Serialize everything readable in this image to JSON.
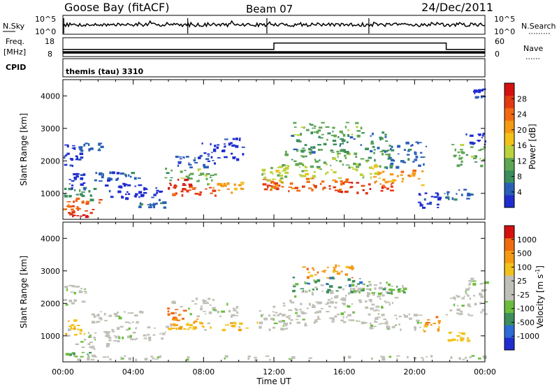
{
  "header": {
    "station": "Goose Bay (fitACF)",
    "beam": "Beam 07",
    "date": "24/Dec/2011"
  },
  "noise_panel": {
    "left_label": "N.Sky",
    "right_label": "N.Search",
    "top_tick": "10^5",
    "bottom_tick": "10^0",
    "spikes_hours": [
      0.05,
      7.1,
      11.6,
      17.4
    ]
  },
  "freq_panel": {
    "left_label": "Freq.",
    "left_unit": "[MHz]",
    "right_label": "Nave",
    "left_ticks": [
      "18",
      "8"
    ],
    "right_ticks": [
      "60",
      "0"
    ],
    "step_profile": [
      [
        0,
        0.62
      ],
      [
        12,
        0.62
      ],
      [
        12,
        0.28
      ],
      [
        21.8,
        0.28
      ],
      [
        21.8,
        0.62
      ],
      [
        24,
        0.62
      ]
    ]
  },
  "cpid_panel": {
    "label": "CPID",
    "mode": "themis (tau) 3310"
  },
  "chart_data": [
    {
      "type": "heatmap",
      "name": "power",
      "ylabel": "Slant Range [km]",
      "xlabel": "Time UT",
      "xlim": [
        0,
        24
      ],
      "ylim": [
        200,
        4500
      ],
      "xticks": [
        "00:00",
        "04:00",
        "08:00",
        "12:00",
        "16:00",
        "20:00",
        "00:00"
      ],
      "yticks": [
        1000,
        2000,
        3000,
        4000
      ],
      "colorbar": {
        "label": "Power [dB]",
        "ticks": [
          "4",
          "8",
          "12",
          "16",
          "20",
          "24",
          "28"
        ],
        "colors": [
          "#1f2dcf",
          "#2a5fb7",
          "#3c8e5d",
          "#5fa654",
          "#bcd23c",
          "#f2c21a",
          "#f49a14",
          "#f16a10",
          "#e33a12",
          "#d4110f"
        ]
      },
      "blobs": [
        {
          "t": 0.9,
          "r": 380,
          "dt": 0.9,
          "dr": 130,
          "c": 9
        },
        {
          "t": 1.0,
          "r": 700,
          "dt": 1.4,
          "dr": 250,
          "c": 7
        },
        {
          "t": 0.8,
          "r": 1000,
          "dt": 1.2,
          "dr": 250,
          "c": 2
        },
        {
          "t": 0.7,
          "r": 1400,
          "dt": 0.7,
          "dr": 300,
          "c": 0
        },
        {
          "t": 0.5,
          "r": 2200,
          "dt": 0.6,
          "dr": 400,
          "c": 0
        },
        {
          "t": 1.5,
          "r": 2450,
          "dt": 0.8,
          "dr": 150,
          "c": 1
        },
        {
          "t": 3.0,
          "r": 1550,
          "dt": 1.6,
          "dr": 200,
          "c": 1
        },
        {
          "t": 4.0,
          "r": 1100,
          "dt": 2.2,
          "dr": 300,
          "c": 0
        },
        {
          "t": 5.0,
          "r": 750,
          "dt": 1.0,
          "dr": 200,
          "c": 1
        },
        {
          "t": 6.6,
          "r": 1300,
          "dt": 0.8,
          "dr": 200,
          "c": 9
        },
        {
          "t": 7.4,
          "r": 1100,
          "dt": 1.6,
          "dr": 170,
          "c": 8
        },
        {
          "t": 7.2,
          "r": 1550,
          "dt": 1.8,
          "dr": 300,
          "c": 3
        },
        {
          "t": 7.5,
          "r": 2000,
          "dt": 1.4,
          "dr": 250,
          "c": 1
        },
        {
          "t": 9.3,
          "r": 1200,
          "dt": 1.0,
          "dr": 200,
          "c": 6
        },
        {
          "t": 9.0,
          "r": 2400,
          "dt": 1.6,
          "dr": 400,
          "c": 0
        },
        {
          "t": 11.8,
          "r": 1250,
          "dt": 0.6,
          "dr": 250,
          "c": 8
        },
        {
          "t": 12.0,
          "r": 1500,
          "dt": 0.9,
          "dr": 400,
          "c": 4
        },
        {
          "t": 14.0,
          "r": 1300,
          "dt": 2.8,
          "dr": 250,
          "c": 7
        },
        {
          "t": 15.0,
          "r": 1700,
          "dt": 3.8,
          "dr": 300,
          "c": 4
        },
        {
          "t": 15.5,
          "r": 2100,
          "dt": 4.0,
          "dr": 350,
          "c": 3
        },
        {
          "t": 15.8,
          "r": 2600,
          "dt": 3.6,
          "dr": 400,
          "c": 2
        },
        {
          "t": 15.0,
          "r": 3000,
          "dt": 2.4,
          "dr": 250,
          "c": 3
        },
        {
          "t": 16.8,
          "r": 1200,
          "dt": 2.6,
          "dr": 200,
          "c": 8
        },
        {
          "t": 19.0,
          "r": 1500,
          "dt": 1.8,
          "dr": 300,
          "c": 6
        },
        {
          "t": 19.5,
          "r": 2200,
          "dt": 1.4,
          "dr": 500,
          "c": 1
        },
        {
          "t": 20.8,
          "r": 800,
          "dt": 0.8,
          "dr": 300,
          "c": 0
        },
        {
          "t": 22.4,
          "r": 1000,
          "dt": 1.0,
          "dr": 200,
          "c": 1
        },
        {
          "t": 23.0,
          "r": 2200,
          "dt": 1.2,
          "dr": 400,
          "c": 3
        },
        {
          "t": 23.5,
          "r": 2700,
          "dt": 0.8,
          "dr": 250,
          "c": 0
        },
        {
          "t": 23.6,
          "r": 4100,
          "dt": 0.5,
          "dr": 200,
          "c": 0
        }
      ]
    },
    {
      "type": "heatmap",
      "name": "velocity",
      "ylabel": "Slant Range [km]",
      "xlabel": "Time UT",
      "xlim": [
        0,
        24
      ],
      "ylim": [
        200,
        4500
      ],
      "xticks": [
        "00:00",
        "04:00",
        "08:00",
        "12:00",
        "16:00",
        "20:00",
        "00:00"
      ],
      "yticks": [
        1000,
        2000,
        3000,
        4000
      ],
      "colorbar": {
        "label": "Velocity [m s^-1]",
        "ticks": [
          "1000",
          "500",
          "100",
          "25",
          "-25",
          "-100",
          "-500",
          "-1000"
        ],
        "colors": [
          "#1f2dcf",
          "#2d6bd6",
          "#3c8e5d",
          "#6cbd3e",
          "#c0c0b8",
          "#c0c0b8",
          "#f2c21a",
          "#f49a14",
          "#f16a10",
          "#d4110f"
        ]
      },
      "blobs": [
        {
          "t": 0.9,
          "r": 400,
          "dt": 1.0,
          "dr": 150,
          "c": 3
        },
        {
          "t": 1.2,
          "r": 900,
          "dt": 1.8,
          "dr": 350,
          "c": 4
        },
        {
          "t": 0.6,
          "r": 1300,
          "dt": 0.8,
          "dr": 300,
          "c": 6
        },
        {
          "t": 0.6,
          "r": 2300,
          "dt": 0.8,
          "dr": 400,
          "c": 4
        },
        {
          "t": 3.0,
          "r": 1600,
          "dt": 2.0,
          "dr": 250,
          "c": 4
        },
        {
          "t": 4.0,
          "r": 1100,
          "dt": 2.4,
          "dr": 300,
          "c": 4
        },
        {
          "t": 6.4,
          "r": 1700,
          "dt": 0.6,
          "dr": 250,
          "c": 8
        },
        {
          "t": 7.0,
          "r": 1400,
          "dt": 1.2,
          "dr": 200,
          "c": 7
        },
        {
          "t": 8.5,
          "r": 1300,
          "dt": 3.2,
          "dr": 180,
          "c": 6
        },
        {
          "t": 8.0,
          "r": 1900,
          "dt": 2.4,
          "dr": 350,
          "c": 4
        },
        {
          "t": 12.0,
          "r": 1500,
          "dt": 1.2,
          "dr": 400,
          "c": 4
        },
        {
          "t": 15.0,
          "r": 1700,
          "dt": 4.0,
          "dr": 450,
          "c": 4
        },
        {
          "t": 15.5,
          "r": 2300,
          "dt": 4.2,
          "dr": 400,
          "c": 4
        },
        {
          "t": 15.0,
          "r": 2600,
          "dt": 2.6,
          "dr": 300,
          "c": 2
        },
        {
          "t": 15.2,
          "r": 3000,
          "dt": 2.0,
          "dr": 250,
          "c": 7
        },
        {
          "t": 18.0,
          "r": 2500,
          "dt": 1.8,
          "dr": 250,
          "c": 3
        },
        {
          "t": 19.0,
          "r": 1500,
          "dt": 2.0,
          "dr": 350,
          "c": 4
        },
        {
          "t": 20.9,
          "r": 1400,
          "dt": 0.6,
          "dr": 300,
          "c": 7
        },
        {
          "t": 22.5,
          "r": 1000,
          "dt": 0.8,
          "dr": 200,
          "c": 6
        },
        {
          "t": 23.0,
          "r": 2000,
          "dt": 1.6,
          "dr": 450,
          "c": 4
        },
        {
          "t": 23.5,
          "r": 2600,
          "dt": 0.8,
          "dr": 250,
          "c": 4
        },
        {
          "t": 11.0,
          "r": 350,
          "dt": 22.0,
          "dr": 80,
          "c": 4
        }
      ]
    }
  ]
}
